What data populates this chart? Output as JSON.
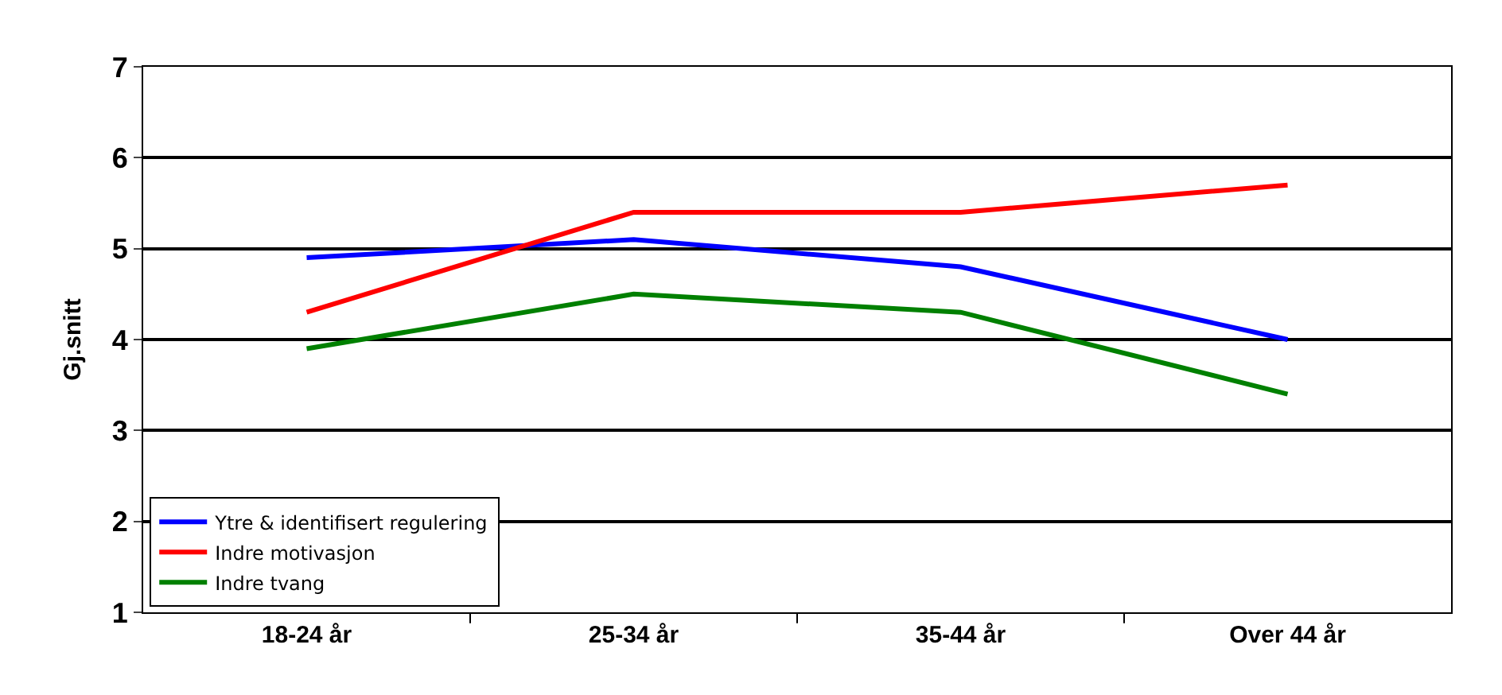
{
  "chart_data": {
    "type": "line",
    "ylabel": "Gj.snitt",
    "categories": [
      "18-24 år",
      "25-34 år",
      "35-44 år",
      "Over 44 år"
    ],
    "series": [
      {
        "name": "Ytre & identifisert regulering",
        "color": "#0000ff",
        "values": [
          4.9,
          5.1,
          4.8,
          4.0
        ]
      },
      {
        "name": "Indre motivasjon",
        "color": "#ff0000",
        "values": [
          4.3,
          5.4,
          5.4,
          5.7
        ]
      },
      {
        "name": "Indre tvang",
        "color": "#008000",
        "values": [
          3.9,
          4.5,
          4.3,
          3.4
        ]
      }
    ],
    "ylim": [
      1,
      7
    ],
    "yticks": [
      1,
      2,
      3,
      4,
      5,
      6,
      7
    ],
    "grid": "y",
    "legend": "bottom left",
    "marker": "none",
    "line_style": "solid"
  }
}
